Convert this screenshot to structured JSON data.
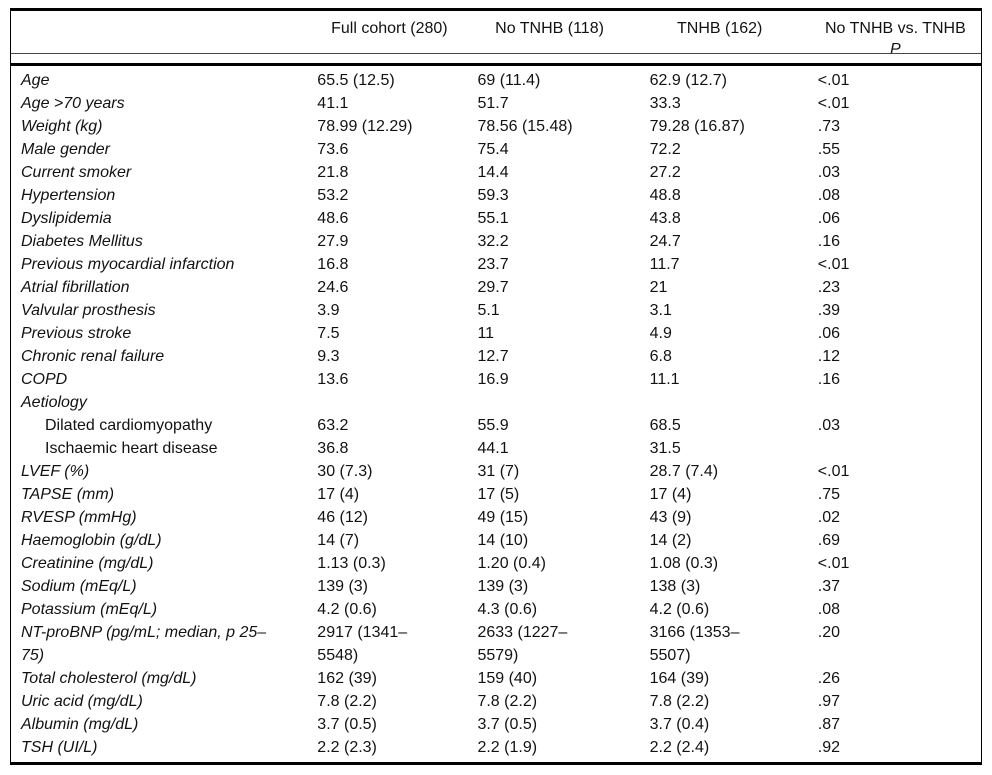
{
  "table": {
    "columns": {
      "rowlabel": "",
      "full_cohort": "Full cohort (280)",
      "no_tnhb": "No TNHB (118)",
      "tnhb": "TNHB (162)",
      "comparison": "No TNHB vs. TNHB"
    },
    "p_label": "P",
    "rows": [
      {
        "label": "Age",
        "sub": false,
        "values": [
          "65.5 (12.5)",
          "69 (11.4)",
          "62.9 (12.7)",
          "<.01"
        ]
      },
      {
        "label": "Age >70 years",
        "sub": false,
        "values": [
          "41.1",
          "51.7",
          "33.3",
          "<.01"
        ]
      },
      {
        "label": "Weight (kg)",
        "sub": false,
        "values": [
          "78.99 (12.29)",
          "78.56 (15.48)",
          "79.28 (16.87)",
          ".73"
        ]
      },
      {
        "label": "Male gender",
        "sub": false,
        "values": [
          "73.6",
          "75.4",
          "72.2",
          ".55"
        ]
      },
      {
        "label": "Current smoker",
        "sub": false,
        "values": [
          "21.8",
          "14.4",
          "27.2",
          ".03"
        ]
      },
      {
        "label": "Hypertension",
        "sub": false,
        "values": [
          "53.2",
          "59.3",
          "48.8",
          ".08"
        ]
      },
      {
        "label": "Dyslipidemia",
        "sub": false,
        "values": [
          "48.6",
          "55.1",
          "43.8",
          ".06"
        ]
      },
      {
        "label": "Diabetes Mellitus",
        "sub": false,
        "values": [
          "27.9",
          "32.2",
          "24.7",
          ".16"
        ]
      },
      {
        "label": "Previous myocardial infarction",
        "sub": false,
        "values": [
          "16.8",
          "23.7",
          "11.7",
          "<.01"
        ]
      },
      {
        "label": "Atrial fibrillation",
        "sub": false,
        "values": [
          "24.6",
          "29.7",
          "21",
          ".23"
        ]
      },
      {
        "label": "Valvular prosthesis",
        "sub": false,
        "values": [
          "3.9",
          "5.1",
          "3.1",
          ".39"
        ]
      },
      {
        "label": "Previous stroke",
        "sub": false,
        "values": [
          "7.5",
          "11",
          "4.9",
          ".06"
        ]
      },
      {
        "label": "Chronic renal failure",
        "sub": false,
        "values": [
          "9.3",
          "12.7",
          "6.8",
          ".12"
        ]
      },
      {
        "label": "COPD",
        "sub": false,
        "values": [
          "13.6",
          "16.9",
          "11.1",
          ".16"
        ]
      },
      {
        "label": "Aetiology",
        "sub": false,
        "values": [
          "",
          "",
          "",
          ""
        ]
      },
      {
        "label": "Dilated cardiomyopathy",
        "sub": true,
        "values": [
          "63.2",
          "55.9",
          "68.5",
          ".03"
        ]
      },
      {
        "label": "Ischaemic heart disease",
        "sub": true,
        "values": [
          "36.8",
          "44.1",
          "31.5",
          ""
        ]
      },
      {
        "label": "LVEF (%)",
        "sub": false,
        "values": [
          "30 (7.3)",
          "31 (7)",
          "28.7 (7.4)",
          "<.01"
        ]
      },
      {
        "label": "TAPSE (mm)",
        "sub": false,
        "values": [
          "17 (4)",
          "17 (5)",
          "17 (4)",
          ".75"
        ]
      },
      {
        "label": "RVESP (mmHg)",
        "sub": false,
        "values": [
          "46 (12)",
          "49 (15)",
          "43 (9)",
          ".02"
        ]
      },
      {
        "label": "Haemoglobin (g/dL)",
        "sub": false,
        "values": [
          "14 (7)",
          "14 (10)",
          "14 (2)",
          ".69"
        ]
      },
      {
        "label": "Creatinine (mg/dL)",
        "sub": false,
        "values": [
          "1.13 (0.3)",
          "1.20 (0.4)",
          "1.08 (0.3)",
          "<.01"
        ]
      },
      {
        "label": "Sodium (mEq/L)",
        "sub": false,
        "values": [
          "139 (3)",
          "139 (3)",
          "138 (3)",
          ".37"
        ]
      },
      {
        "label": "Potassium (mEq/L)",
        "sub": false,
        "values": [
          "4.2 (0.6)",
          "4.3 (0.6)",
          "4.2 (0.6)",
          ".08"
        ]
      },
      {
        "label": "NT-proBNP (pg/mL; median, p 25–\n75)",
        "sub": false,
        "values": [
          "2917 (1341–\n5548)",
          "2633 (1227–\n5579)",
          "3166 (1353–\n5507)",
          ".20"
        ]
      },
      {
        "label": "Total cholesterol (mg/dL)",
        "sub": false,
        "values": [
          "162 (39)",
          "159 (40)",
          "164 (39)",
          ".26"
        ]
      },
      {
        "label": "Uric acid (mg/dL)",
        "sub": false,
        "values": [
          "7.8 (2.2)",
          "7.8 (2.2)",
          "7.8 (2.2)",
          ".97"
        ]
      },
      {
        "label": "Albumin (mg/dL)",
        "sub": false,
        "values": [
          "3.7 (0.5)",
          "3.7 (0.5)",
          "3.7 (0.4)",
          ".87"
        ]
      },
      {
        "label": "TSH (UI/L)",
        "sub": false,
        "values": [
          "2.2 (2.3)",
          "2.2 (1.9)",
          "2.2 (2.4)",
          ".92"
        ]
      }
    ]
  }
}
